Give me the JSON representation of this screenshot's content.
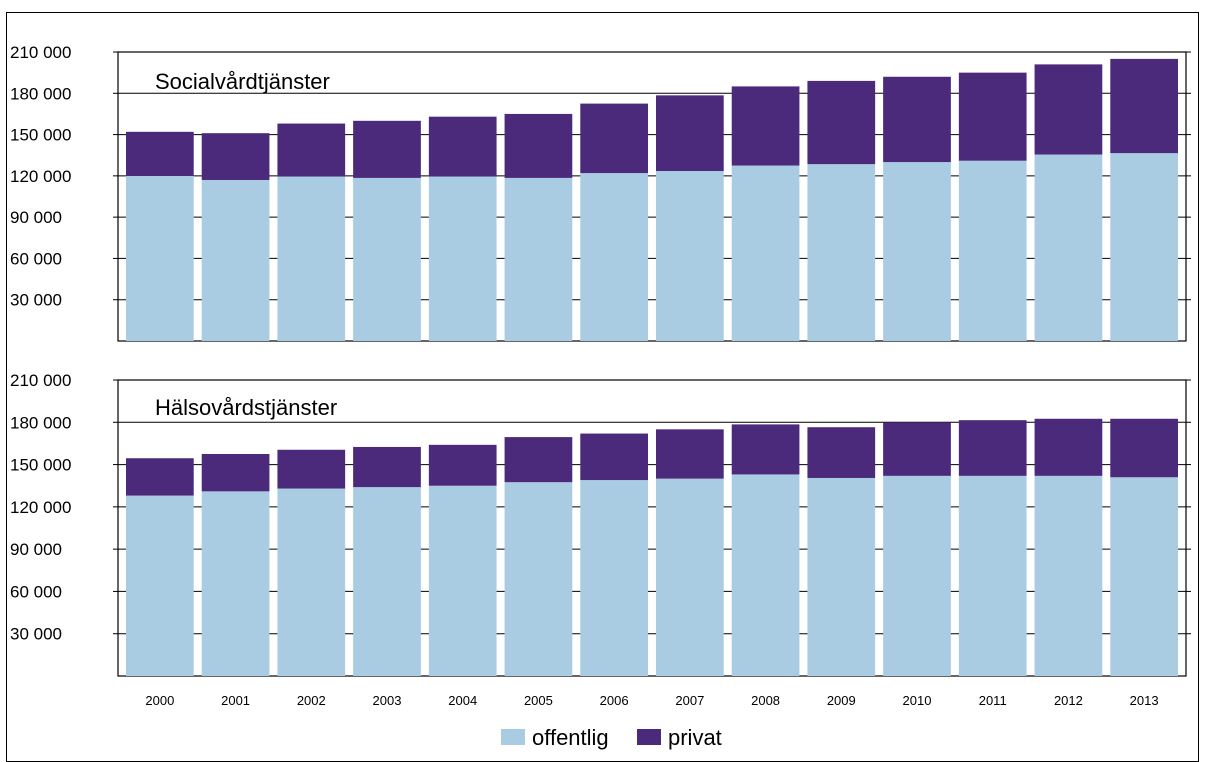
{
  "chart_data": [
    {
      "type": "bar",
      "stacked": true,
      "title": "Socialvårdtjänster",
      "categories": [
        "2000",
        "2001",
        "2002",
        "2003",
        "2004",
        "2005",
        "2006",
        "2007",
        "2008",
        "2009",
        "2010",
        "2011",
        "2012",
        "2013"
      ],
      "series": [
        {
          "name": "offentlig",
          "color": "#a9cce3",
          "values": [
            120000,
            117000,
            119500,
            118500,
            119500,
            118500,
            122000,
            123500,
            127500,
            128500,
            130000,
            131000,
            135500,
            136500
          ]
        },
        {
          "name": "privat",
          "color": "#4b2a7b",
          "values": [
            32000,
            34000,
            38500,
            41500,
            43500,
            46500,
            50500,
            55000,
            57500,
            60500,
            62000,
            64000,
            65500,
            68500
          ]
        }
      ],
      "ylim": [
        0,
        210000
      ],
      "yticks": [
        "30 000",
        "60 000",
        "90 000",
        "120 000",
        "150 000",
        "180 000",
        "210 000"
      ],
      "grid": true
    },
    {
      "type": "bar",
      "stacked": true,
      "title": "Hälsovårdstjänster",
      "categories": [
        "2000",
        "2001",
        "2002",
        "2003",
        "2004",
        "2005",
        "2006",
        "2007",
        "2008",
        "2009",
        "2010",
        "2011",
        "2012",
        "2013"
      ],
      "series": [
        {
          "name": "offentlig",
          "color": "#a9cce3",
          "values": [
            128000,
            131000,
            133000,
            134000,
            135000,
            137500,
            139000,
            140000,
            143000,
            140500,
            142000,
            142000,
            142000,
            141000
          ]
        },
        {
          "name": "privat",
          "color": "#4b2a7b",
          "values": [
            26500,
            26500,
            27500,
            28500,
            29000,
            32000,
            33000,
            35000,
            35500,
            36000,
            38000,
            39500,
            40500,
            41500
          ]
        }
      ],
      "ylim": [
        0,
        210000
      ],
      "yticks": [
        "30 000",
        "60 000",
        "90 000",
        "120 000",
        "150 000",
        "180 000",
        "210 000"
      ],
      "grid": true
    }
  ],
  "legend": {
    "items": [
      {
        "label": "offentlig",
        "color": "#a9cce3"
      },
      {
        "label": "privat",
        "color": "#4b2a7b"
      }
    ]
  }
}
